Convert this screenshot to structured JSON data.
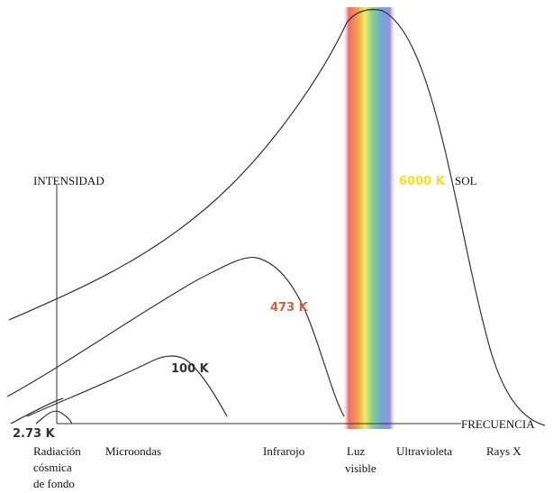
{
  "axes": {
    "y_label": "INTENSIDAD",
    "x_label": "FRECUENCIA"
  },
  "curves": [
    {
      "label": "6000 K",
      "source": "SOL"
    },
    {
      "label": "473 K"
    },
    {
      "label": "100 K"
    },
    {
      "label": "2.73 K"
    }
  ],
  "regions": [
    {
      "lines": [
        "Radiación",
        "cósmica",
        "de fondo"
      ]
    },
    {
      "lines": [
        "Microondas"
      ]
    },
    {
      "lines": [
        "Infrarojo"
      ]
    },
    {
      "lines": [
        "Luz",
        "visible"
      ]
    },
    {
      "lines": [
        "Ultravioleta"
      ]
    },
    {
      "lines": [
        "Rays X"
      ]
    }
  ]
}
